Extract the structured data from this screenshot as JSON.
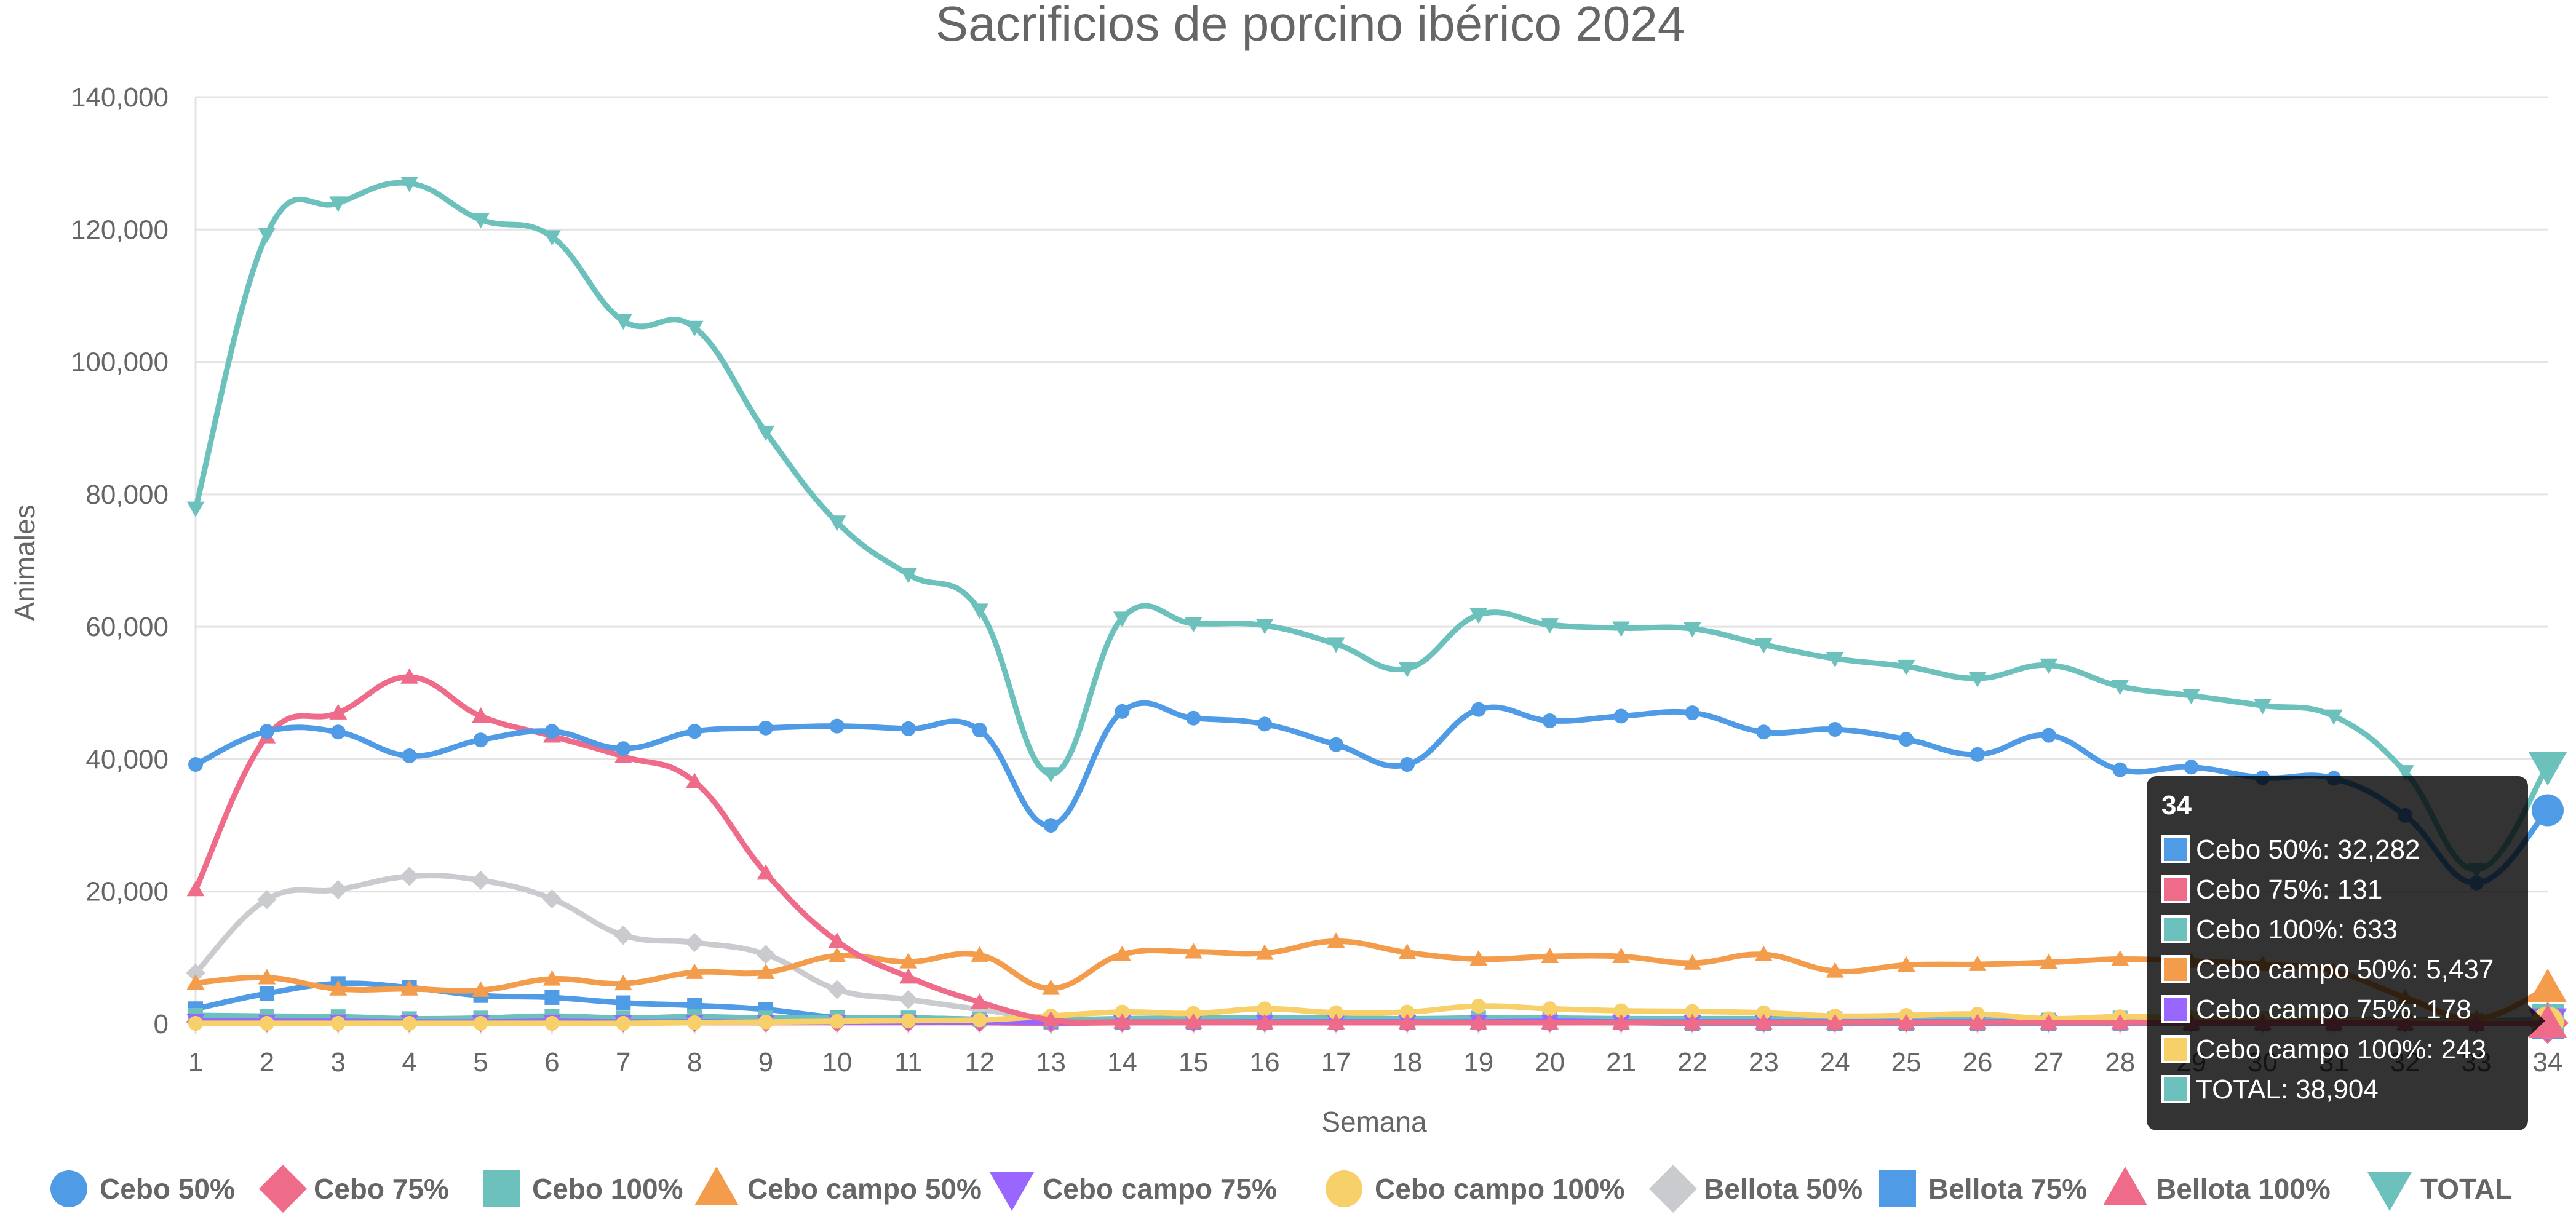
{
  "chart_data": {
    "type": "line",
    "title": "Sacrificios de porcino ibérico 2024",
    "xlabel": "Semana",
    "ylabel": "Animales",
    "ylim": [
      0,
      140000
    ],
    "y_ticks": [
      0,
      20000,
      40000,
      60000,
      80000,
      100000,
      120000,
      140000
    ],
    "y_tick_labels": [
      "0",
      "20,000",
      "40,000",
      "60,000",
      "80,000",
      "100,000",
      "120,000",
      "140,000"
    ],
    "grid": true,
    "legend_position": "bottom",
    "categories": [
      "1",
      "2",
      "3",
      "4",
      "5",
      "6",
      "7",
      "8",
      "9",
      "10",
      "11",
      "12",
      "13",
      "14",
      "15",
      "16",
      "17",
      "18",
      "19",
      "20",
      "21",
      "22",
      "23",
      "24",
      "25",
      "26",
      "27",
      "28",
      "29",
      "30",
      "31",
      "32",
      "33",
      "34"
    ],
    "series": [
      {
        "name": "Cebo 50%",
        "color": "#4f9be6",
        "marker": "circle",
        "values": [
          39200,
          44200,
          44100,
          40500,
          42900,
          44200,
          41600,
          44200,
          44700,
          45000,
          44600,
          44400,
          30000,
          47200,
          46200,
          45300,
          42200,
          39200,
          47500,
          45800,
          46500,
          47000,
          44100,
          44500,
          43000,
          40700,
          43600,
          38400,
          38800,
          37200,
          37100,
          31500,
          21300,
          32282
        ]
      },
      {
        "name": "Cebo 75%",
        "color": "#ee6b89",
        "marker": "diamond",
        "values": [
          300,
          200,
          200,
          200,
          200,
          300,
          200,
          200,
          200,
          200,
          200,
          200,
          100,
          200,
          200,
          200,
          200,
          200,
          200,
          200,
          200,
          200,
          200,
          200,
          200,
          200,
          200,
          200,
          200,
          200,
          200,
          200,
          100,
          131
        ]
      },
      {
        "name": "Cebo 100%",
        "color": "#6cc1bd",
        "marker": "square",
        "values": [
          1300,
          1200,
          1100,
          800,
          900,
          1200,
          900,
          1100,
          900,
          900,
          900,
          700,
          600,
          800,
          900,
          900,
          900,
          800,
          900,
          900,
          800,
          800,
          800,
          800,
          700,
          700,
          600,
          900,
          800,
          800,
          700,
          700,
          500,
          633
        ]
      },
      {
        "name": "Cebo campo 50%",
        "color": "#f39c4b",
        "marker": "triangle-up",
        "values": [
          6200,
          7000,
          5300,
          5300,
          5100,
          6800,
          6100,
          7800,
          7800,
          10300,
          9400,
          10400,
          5400,
          10500,
          10900,
          10700,
          12500,
          10800,
          9800,
          10200,
          10200,
          9200,
          10500,
          8000,
          8900,
          9000,
          9300,
          9800,
          9500,
          9000,
          8000,
          4000,
          800,
          5437
        ]
      },
      {
        "name": "Cebo campo 75%",
        "color": "#9966ff",
        "marker": "triangle-down",
        "values": [
          500,
          400,
          400,
          300,
          300,
          400,
          300,
          300,
          300,
          300,
          300,
          300,
          200,
          300,
          300,
          300,
          300,
          300,
          300,
          400,
          300,
          300,
          300,
          300,
          300,
          300,
          300,
          300,
          300,
          300,
          300,
          200,
          150,
          178
        ]
      },
      {
        "name": "Cebo campo 100%",
        "color": "#f8d06a",
        "marker": "circle",
        "values": [
          100,
          100,
          100,
          100,
          100,
          100,
          100,
          200,
          300,
          400,
          500,
          600,
          1200,
          1800,
          1600,
          2300,
          1700,
          1800,
          2700,
          2300,
          2000,
          1900,
          1700,
          1200,
          1300,
          1500,
          800,
          1100,
          900,
          700,
          600,
          400,
          300,
          243
        ]
      },
      {
        "name": "Bellota 50%",
        "color": "#c9cbcf",
        "marker": "diamond",
        "values": [
          7700,
          18800,
          20300,
          22300,
          21700,
          18900,
          13400,
          12300,
          10500,
          5200,
          3700,
          2200,
          800,
          700,
          600,
          500,
          500,
          400,
          400,
          400,
          400,
          300,
          300,
          300,
          300,
          300,
          300,
          300,
          300,
          300,
          300,
          200,
          100,
          200
        ]
      },
      {
        "name": "Bellota 75%",
        "color": "#4f9be6",
        "marker": "square",
        "values": [
          2300,
          4600,
          6100,
          5500,
          4300,
          4000,
          3200,
          2800,
          2200,
          1000,
          900,
          700,
          300,
          200,
          200,
          200,
          200,
          200,
          200,
          200,
          200,
          100,
          100,
          100,
          100,
          100,
          100,
          100,
          100,
          100,
          100,
          100,
          50,
          100
        ]
      },
      {
        "name": "Bellota 100%",
        "color": "#ee6b89",
        "marker": "triangle-up",
        "values": [
          20300,
          43400,
          47000,
          52400,
          46500,
          43500,
          40400,
          36600,
          22800,
          12500,
          7100,
          3300,
          600,
          300,
          300,
          200,
          200,
          200,
          200,
          200,
          200,
          200,
          200,
          200,
          200,
          200,
          200,
          200,
          200,
          200,
          200,
          100,
          50,
          100
        ]
      },
      {
        "name": "TOTAL",
        "color": "#6cc1bd",
        "marker": "triangle-down",
        "values": [
          77900,
          119300,
          124000,
          127000,
          121500,
          118900,
          106200,
          105200,
          89400,
          75800,
          67900,
          62500,
          37800,
          61300,
          60500,
          60200,
          57400,
          53700,
          61800,
          60300,
          59800,
          59700,
          57300,
          55200,
          54000,
          52200,
          54200,
          51000,
          49600,
          48100,
          46500,
          38100,
          23300,
          38904
        ]
      }
    ],
    "tooltip": {
      "title": "34",
      "lines": [
        "Cebo 50%: 32,282",
        "Cebo 75%: 131",
        "Cebo 100%: 633",
        "Cebo campo 50%: 5,437",
        "Cebo campo 75%: 178",
        "Cebo campo 100%: 243",
        "TOTAL: 38,904"
      ],
      "colors": [
        "#4f9be6",
        "#ee6b89",
        "#6cc1bd",
        "#f39c4b",
        "#9966ff",
        "#f8d06a",
        "#6cc1bd"
      ]
    }
  }
}
